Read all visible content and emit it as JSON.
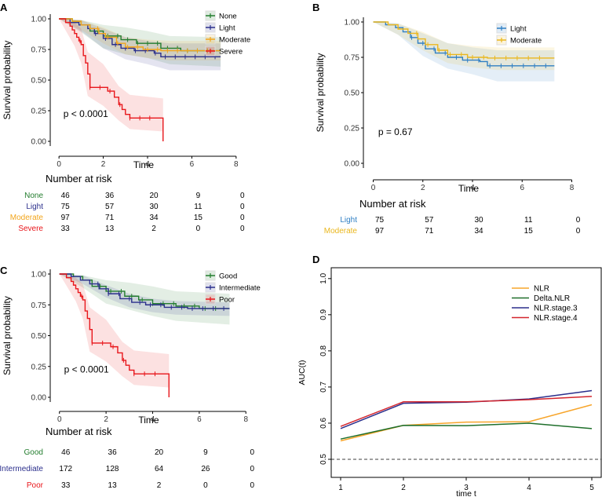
{
  "colors": {
    "none": "#237d2e",
    "light_a": "#2b2f8c",
    "moderate": "#f2a51c",
    "severe": "#e8161b",
    "light_b": "#2f7fc4",
    "moderate_b": "#eab71e",
    "good": "#237d2e",
    "intermediate": "#2b2f8c",
    "poor": "#e8161b",
    "nlr": "#f7a52b",
    "delta": "#1f6f2b",
    "stage3": "#2b2f8c",
    "stage4": "#d4252d"
  },
  "chart_data": [
    {
      "panel": "A",
      "type": "line",
      "subtype": "kaplan-meier",
      "xlabel": "Time",
      "ylabel": "Survival probability",
      "xlim": [
        0,
        8
      ],
      "xticks": [
        "0",
        "2",
        "4",
        "6",
        "8"
      ],
      "ylim": [
        0,
        1
      ],
      "yticks": [
        "0.00",
        "0.25",
        "0.50",
        "0.75",
        "1.00"
      ],
      "pvalue": "p < 0.0001",
      "series": [
        {
          "name": "None",
          "color": "#237d2e",
          "end": 7.3,
          "steps": [
            [
              0,
              1
            ],
            [
              0.6,
              0.98
            ],
            [
              1.0,
              0.95
            ],
            [
              1.4,
              0.9
            ],
            [
              2.0,
              0.86
            ],
            [
              2.8,
              0.83
            ],
            [
              3.5,
              0.8
            ],
            [
              4.6,
              0.76
            ],
            [
              5.5,
              0.74
            ]
          ],
          "band": [
            [
              0,
              1,
              1
            ],
            [
              1,
              0.89,
              0.99
            ],
            [
              2,
              0.76,
              0.95
            ],
            [
              3,
              0.71,
              0.93
            ],
            [
              4,
              0.68,
              0.9
            ],
            [
              5,
              0.63,
              0.86
            ],
            [
              7.3,
              0.61,
              0.85
            ]
          ]
        },
        {
          "name": "Light",
          "color": "#2b2f8c",
          "end": 7.3,
          "steps": [
            [
              0,
              1
            ],
            [
              0.5,
              0.97
            ],
            [
              0.9,
              0.95
            ],
            [
              1.3,
              0.92
            ],
            [
              1.6,
              0.88
            ],
            [
              2.0,
              0.84
            ],
            [
              2.4,
              0.79
            ],
            [
              2.8,
              0.76
            ],
            [
              3.4,
              0.74
            ],
            [
              4.3,
              0.72
            ],
            [
              4.6,
              0.69
            ]
          ],
          "band": [
            [
              0,
              1,
              1
            ],
            [
              1,
              0.9,
              0.99
            ],
            [
              2,
              0.76,
              0.92
            ],
            [
              3,
              0.67,
              0.85
            ],
            [
              4,
              0.63,
              0.82
            ],
            [
              5,
              0.58,
              0.8
            ],
            [
              7.3,
              0.58,
              0.8
            ]
          ]
        },
        {
          "name": "Moderate",
          "color": "#f2a51c",
          "end": 7.3,
          "steps": [
            [
              0,
              1
            ],
            [
              0.6,
              0.98
            ],
            [
              1.0,
              0.95
            ],
            [
              1.4,
              0.92
            ],
            [
              1.8,
              0.88
            ],
            [
              2.1,
              0.85
            ],
            [
              2.6,
              0.8
            ],
            [
              3.0,
              0.77
            ],
            [
              3.8,
              0.75
            ],
            [
              4.6,
              0.74
            ]
          ],
          "band": [
            [
              0,
              1,
              1
            ],
            [
              1,
              0.91,
              0.99
            ],
            [
              2,
              0.8,
              0.93
            ],
            [
              3,
              0.71,
              0.85
            ],
            [
              4,
              0.68,
              0.83
            ],
            [
              5,
              0.66,
              0.82
            ],
            [
              7.3,
              0.66,
              0.82
            ]
          ]
        },
        {
          "name": "Severe",
          "color": "#e8161b",
          "end": 4.7,
          "steps": [
            [
              0,
              1
            ],
            [
              0.3,
              0.97
            ],
            [
              0.5,
              0.94
            ],
            [
              0.6,
              0.91
            ],
            [
              0.7,
              0.88
            ],
            [
              0.8,
              0.85
            ],
            [
              0.9,
              0.82
            ],
            [
              1.0,
              0.79
            ],
            [
              1.1,
              0.7
            ],
            [
              1.2,
              0.64
            ],
            [
              1.3,
              0.55
            ],
            [
              1.4,
              0.44
            ],
            [
              2.2,
              0.41
            ],
            [
              2.5,
              0.36
            ],
            [
              2.7,
              0.3
            ],
            [
              2.85,
              0.26
            ],
            [
              3.0,
              0.22
            ],
            [
              3.2,
              0.19
            ],
            [
              4.7,
              0.0
            ]
          ],
          "band": [
            [
              0,
              1,
              1
            ],
            [
              0.7,
              0.78,
              0.97
            ],
            [
              1.0,
              0.64,
              0.92
            ],
            [
              1.3,
              0.37,
              0.73
            ],
            [
              2.0,
              0.29,
              0.63
            ],
            [
              2.7,
              0.17,
              0.45
            ],
            [
              3.2,
              0.1,
              0.38
            ],
            [
              4.7,
              0.08,
              0.35
            ]
          ]
        }
      ],
      "risk_table": {
        "title": "Number at risk",
        "rows": [
          {
            "label": "None",
            "color": "#237d2e",
            "values": [
              "46",
              "36",
              "20",
              "9",
              "0"
            ]
          },
          {
            "label": "Light",
            "color": "#2b2f8c",
            "values": [
              "75",
              "57",
              "30",
              "11",
              "0"
            ]
          },
          {
            "label": "Moderate",
            "color": "#f2a51c",
            "values": [
              "97",
              "71",
              "34",
              "15",
              "0"
            ]
          },
          {
            "label": "Severe",
            "color": "#e8161b",
            "values": [
              "33",
              "13",
              "2",
              "0",
              "0"
            ]
          }
        ]
      }
    },
    {
      "panel": "B",
      "type": "line",
      "subtype": "kaplan-meier",
      "xlabel": "Time",
      "ylabel": "Survival probability",
      "xlim": [
        0,
        8
      ],
      "xticks": [
        "0",
        "2",
        "4",
        "6",
        "8"
      ],
      "ylim": [
        0,
        1
      ],
      "yticks": [
        "0.00",
        "0.25",
        "0.50",
        "0.75",
        "1.00"
      ],
      "pvalue": "p = 0.67",
      "series": [
        {
          "name": "Light",
          "color": "#2f7fc4",
          "end": 7.3,
          "steps": [
            [
              0,
              1
            ],
            [
              0.5,
              0.98
            ],
            [
              0.9,
              0.96
            ],
            [
              1.2,
              0.93
            ],
            [
              1.5,
              0.89
            ],
            [
              1.8,
              0.85
            ],
            [
              2.1,
              0.81
            ],
            [
              2.5,
              0.78
            ],
            [
              3.0,
              0.75
            ],
            [
              3.6,
              0.73
            ],
            [
              4.3,
              0.72
            ],
            [
              4.6,
              0.69
            ]
          ],
          "band": [
            [
              0,
              1,
              1
            ],
            [
              1,
              0.91,
              0.99
            ],
            [
              2,
              0.76,
              0.92
            ],
            [
              3,
              0.67,
              0.85
            ],
            [
              4,
              0.63,
              0.82
            ],
            [
              5,
              0.58,
              0.8
            ],
            [
              7.3,
              0.58,
              0.8
            ]
          ]
        },
        {
          "name": "Moderate",
          "color": "#eab71e",
          "end": 7.3,
          "steps": [
            [
              0,
              1
            ],
            [
              0.6,
              0.98
            ],
            [
              1.0,
              0.95
            ],
            [
              1.4,
              0.92
            ],
            [
              1.8,
              0.88
            ],
            [
              2.1,
              0.84
            ],
            [
              2.6,
              0.8
            ],
            [
              3.0,
              0.77
            ],
            [
              3.8,
              0.75
            ],
            [
              4.6,
              0.745
            ]
          ],
          "band": [
            [
              0,
              1,
              1
            ],
            [
              1,
              0.91,
              0.99
            ],
            [
              2,
              0.8,
              0.93
            ],
            [
              3,
              0.71,
              0.85
            ],
            [
              4,
              0.68,
              0.83
            ],
            [
              5,
              0.66,
              0.82
            ],
            [
              7.3,
              0.66,
              0.82
            ]
          ]
        }
      ],
      "risk_table": {
        "title": "Number at risk",
        "rows": [
          {
            "label": "Light",
            "color": "#2f7fc4",
            "values": [
              "75",
              "57",
              "30",
              "11",
              "0"
            ]
          },
          {
            "label": "Moderate",
            "color": "#eab71e",
            "values": [
              "97",
              "71",
              "34",
              "15",
              "0"
            ]
          }
        ]
      }
    },
    {
      "panel": "C",
      "type": "line",
      "subtype": "kaplan-meier",
      "xlabel": "Time",
      "ylabel": "Survival probability",
      "xlim": [
        0,
        8
      ],
      "xticks": [
        "0",
        "2",
        "4",
        "6",
        "8"
      ],
      "ylim": [
        0,
        1
      ],
      "yticks": [
        "0.00",
        "0.25",
        "0.50",
        "0.75",
        "1.00"
      ],
      "pvalue": "p < 0.0001",
      "series": [
        {
          "name": "Good",
          "color": "#237d2e",
          "end": 7.3,
          "steps": [
            [
              0,
              1
            ],
            [
              0.6,
              0.98
            ],
            [
              1.0,
              0.95
            ],
            [
              1.4,
              0.9
            ],
            [
              2.0,
              0.86
            ],
            [
              2.8,
              0.82
            ],
            [
              3.4,
              0.79
            ],
            [
              4.0,
              0.76
            ],
            [
              5.0,
              0.74
            ],
            [
              6.0,
              0.72
            ]
          ],
          "band": [
            [
              0,
              1,
              1
            ],
            [
              1,
              0.89,
              0.99
            ],
            [
              2,
              0.76,
              0.95
            ],
            [
              3,
              0.71,
              0.93
            ],
            [
              4,
              0.66,
              0.9
            ],
            [
              5,
              0.62,
              0.86
            ],
            [
              7.3,
              0.59,
              0.84
            ]
          ]
        },
        {
          "name": "Intermediate",
          "color": "#2b2f8c",
          "end": 7.3,
          "steps": [
            [
              0,
              1
            ],
            [
              0.5,
              0.98
            ],
            [
              0.9,
              0.95
            ],
            [
              1.3,
              0.92
            ],
            [
              1.7,
              0.88
            ],
            [
              2.1,
              0.84
            ],
            [
              2.6,
              0.8
            ],
            [
              3.1,
              0.77
            ],
            [
              3.7,
              0.75
            ],
            [
              4.5,
              0.73
            ],
            [
              5.5,
              0.72
            ]
          ],
          "band": [
            [
              0,
              1,
              1
            ],
            [
              1,
              0.92,
              0.99
            ],
            [
              2,
              0.81,
              0.91
            ],
            [
              3,
              0.73,
              0.84
            ],
            [
              4,
              0.69,
              0.8
            ],
            [
              5,
              0.67,
              0.78
            ],
            [
              7.3,
              0.66,
              0.77
            ]
          ]
        },
        {
          "name": "Poor",
          "color": "#e8161b",
          "end": 4.7,
          "steps": [
            [
              0,
              1
            ],
            [
              0.3,
              0.97
            ],
            [
              0.5,
              0.94
            ],
            [
              0.6,
              0.91
            ],
            [
              0.7,
              0.88
            ],
            [
              0.8,
              0.85
            ],
            [
              0.9,
              0.82
            ],
            [
              1.0,
              0.79
            ],
            [
              1.1,
              0.7
            ],
            [
              1.2,
              0.64
            ],
            [
              1.3,
              0.55
            ],
            [
              1.4,
              0.44
            ],
            [
              2.2,
              0.41
            ],
            [
              2.5,
              0.36
            ],
            [
              2.7,
              0.3
            ],
            [
              2.85,
              0.26
            ],
            [
              3.0,
              0.22
            ],
            [
              3.2,
              0.19
            ],
            [
              4.7,
              0.0
            ]
          ],
          "band": [
            [
              0,
              1,
              1
            ],
            [
              0.7,
              0.78,
              0.97
            ],
            [
              1.0,
              0.64,
              0.92
            ],
            [
              1.3,
              0.37,
              0.73
            ],
            [
              2.0,
              0.29,
              0.63
            ],
            [
              2.7,
              0.17,
              0.45
            ],
            [
              3.2,
              0.1,
              0.38
            ],
            [
              4.7,
              0.08,
              0.35
            ]
          ]
        }
      ],
      "risk_table": {
        "title": "Number at risk",
        "rows": [
          {
            "label": "Good",
            "color": "#237d2e",
            "values": [
              "46",
              "36",
              "20",
              "9",
              "0"
            ]
          },
          {
            "label": "Intermediate",
            "color": "#2b2f8c",
            "values": [
              "172",
              "128",
              "64",
              "26",
              "0"
            ]
          },
          {
            "label": "Poor",
            "color": "#e8161b",
            "values": [
              "33",
              "13",
              "2",
              "0",
              "0"
            ]
          }
        ]
      }
    },
    {
      "panel": "D",
      "type": "line",
      "xlabel": "time t",
      "ylabel": "AUC(t)",
      "xlim": [
        0.85,
        5.15
      ],
      "xticks": [
        "1",
        "2",
        "3",
        "4",
        "5"
      ],
      "ylim": [
        0.45,
        1.03
      ],
      "yticks": [
        "0.5",
        "0.6",
        "0.7",
        "0.8",
        "0.9",
        "1.0"
      ],
      "reference_line": 0.5,
      "x": [
        1,
        2,
        3,
        4,
        5
      ],
      "series": [
        {
          "name": "NLR",
          "color": "#f7a52b",
          "values": [
            0.551,
            0.594,
            0.603,
            0.604,
            0.651
          ]
        },
        {
          "name": "Delta.NLR",
          "color": "#1f6f2b",
          "values": [
            0.556,
            0.594,
            0.593,
            0.6,
            0.585
          ]
        },
        {
          "name": "NLR.stage.3",
          "color": "#2b2f8c",
          "values": [
            0.585,
            0.655,
            0.658,
            0.667,
            0.69
          ]
        },
        {
          "name": "NLR.stage.4",
          "color": "#d4252d",
          "values": [
            0.591,
            0.659,
            0.659,
            0.665,
            0.674
          ]
        }
      ]
    }
  ]
}
